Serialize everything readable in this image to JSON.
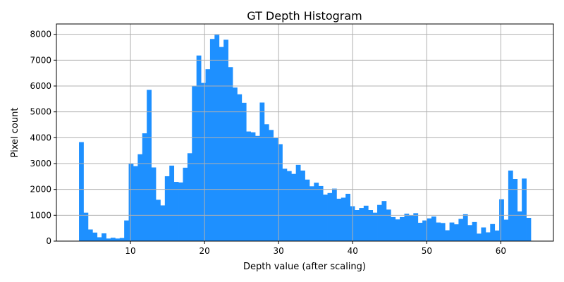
{
  "chart_data": {
    "type": "bar",
    "title": "GT Depth Histogram",
    "xlabel": "Depth value (after scaling)",
    "ylabel": "Pixel count",
    "xlim": [
      0.0,
      67.1
    ],
    "ylim": [
      0,
      8400
    ],
    "xticks": [
      10,
      20,
      30,
      40,
      50,
      60
    ],
    "yticks": [
      0,
      1000,
      2000,
      3000,
      4000,
      5000,
      6000,
      7000,
      8000
    ],
    "grid": true,
    "bar_color": "#1e90ff",
    "bin_width": 0.61,
    "x_start": 3.05,
    "values": [
      3830,
      1100,
      450,
      330,
      150,
      300,
      100,
      130,
      100,
      120,
      800,
      3000,
      2900,
      3360,
      4170,
      5850,
      2850,
      1600,
      1380,
      2510,
      2920,
      2290,
      2270,
      2840,
      3400,
      6000,
      7180,
      6120,
      6650,
      7820,
      7980,
      7510,
      7790,
      6730,
      5940,
      5680,
      5350,
      4240,
      4210,
      4070,
      5360,
      4520,
      4300,
      3990,
      3750,
      2800,
      2710,
      2600,
      2950,
      2730,
      2380,
      2120,
      2260,
      2130,
      1800,
      1860,
      2030,
      1640,
      1680,
      1830,
      1350,
      1200,
      1280,
      1370,
      1200,
      1100,
      1400,
      1550,
      1220,
      930,
      840,
      930,
      1060,
      1000,
      1080,
      710,
      800,
      880,
      950,
      720,
      700,
      420,
      720,
      650,
      860,
      1040,
      620,
      740,
      290,
      530,
      340,
      660,
      410,
      1620,
      830,
      2730,
      2400,
      1150,
      2420,
      900
    ]
  }
}
